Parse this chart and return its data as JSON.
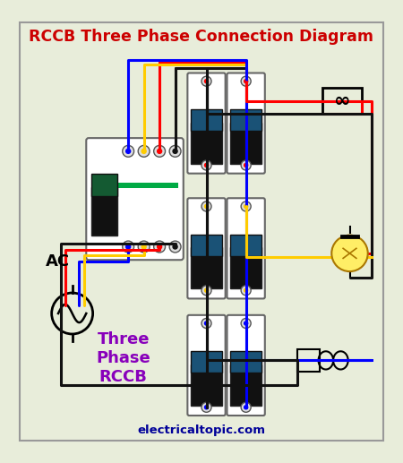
{
  "title": "RCCB Three Phase Connection Diagram",
  "title_color": "#cc0000",
  "bg_color": "#e8edda",
  "border_color": "#999999",
  "website": "electricaltopic.com",
  "website_color": "#000099",
  "label_ac": "AC",
  "label_rccb": "Three\nPhase\nRCCB",
  "label_rccb_color": "#8800bb",
  "wire_red": "#ff0000",
  "wire_yellow": "#ffcc00",
  "wire_blue": "#0000ff",
  "wire_black": "#111111",
  "figsize": [
    4.5,
    5.17
  ],
  "dpi": 100
}
